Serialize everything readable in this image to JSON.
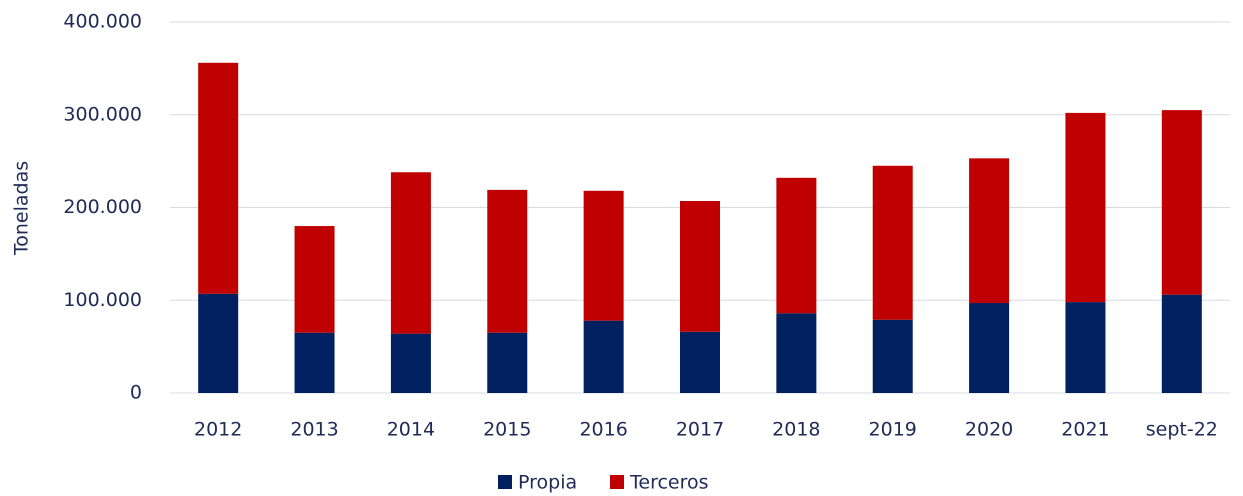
{
  "chart_data": {
    "type": "stacked_bar",
    "y_label": "Toneladas",
    "categories": [
      "2012",
      "2013",
      "2014",
      "2015",
      "2016",
      "2017",
      "2018",
      "2019",
      "2020",
      "2021",
      "sept-22"
    ],
    "series": [
      {
        "name": "Propia",
        "color": "#002060",
        "values": [
          107000,
          65000,
          64000,
          65000,
          78000,
          66000,
          86000,
          79000,
          97000,
          98000,
          106000
        ]
      },
      {
        "name": "Terceros",
        "color": "#c00000",
        "values": [
          249000,
          115000,
          174000,
          154000,
          140000,
          141000,
          146000,
          166000,
          156000,
          204000,
          199000
        ]
      }
    ],
    "ylim": [
      0,
      400000
    ],
    "yticks": [
      0,
      {
        "value": 100000,
        "label": "100.000"
      },
      {
        "value": 200000,
        "label": "200.000"
      },
      {
        "value": 300000,
        "label": "300.000"
      },
      {
        "value": 400000,
        "label": "400.000"
      }
    ],
    "grid": true,
    "legend": "bottom"
  }
}
